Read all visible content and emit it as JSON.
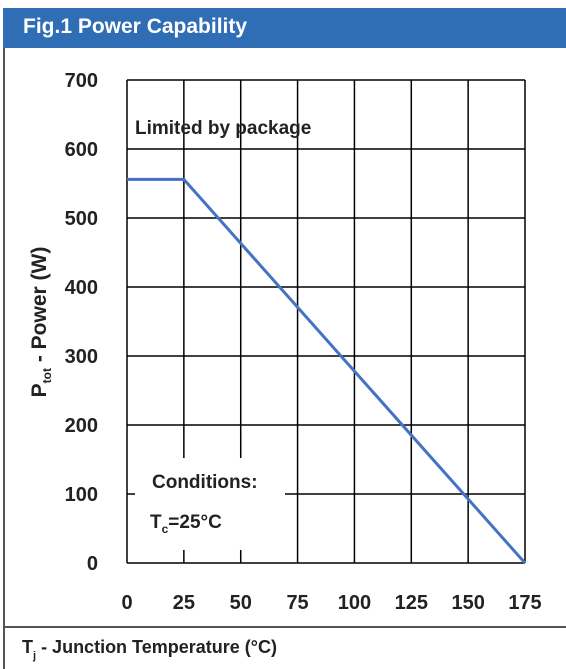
{
  "header": {
    "title": "Fig.1 Power Capability"
  },
  "footer": {
    "xlabel_main": "T",
    "xlabel_sub": "j",
    "xlabel_rest": " - Junction Temperature (°C)"
  },
  "chart_data": {
    "type": "line",
    "title": "Fig.1 Power Capability",
    "xlabel": "Tj - Junction Temperature (°C)",
    "ylabel": "Ptot - Power (W)",
    "xlim": [
      0,
      175
    ],
    "ylim": [
      0,
      700
    ],
    "xticks": [
      0,
      25,
      50,
      75,
      100,
      125,
      150,
      175
    ],
    "yticks": [
      0,
      100,
      200,
      300,
      400,
      500,
      600,
      700
    ],
    "grid": true,
    "series": [
      {
        "x": [
          0,
          25,
          175
        ],
        "y": [
          556,
          556,
          0
        ]
      }
    ],
    "color": "#4472c4",
    "annotations": {
      "limited": "Limited by package",
      "conditions_title": "Conditions:",
      "tc_main": "T",
      "tc_sub": "c",
      "tc_rest": "=25°C"
    },
    "ylabel_parts": {
      "main": "P",
      "sub": "tot",
      "rest": " - Power (W)"
    }
  }
}
